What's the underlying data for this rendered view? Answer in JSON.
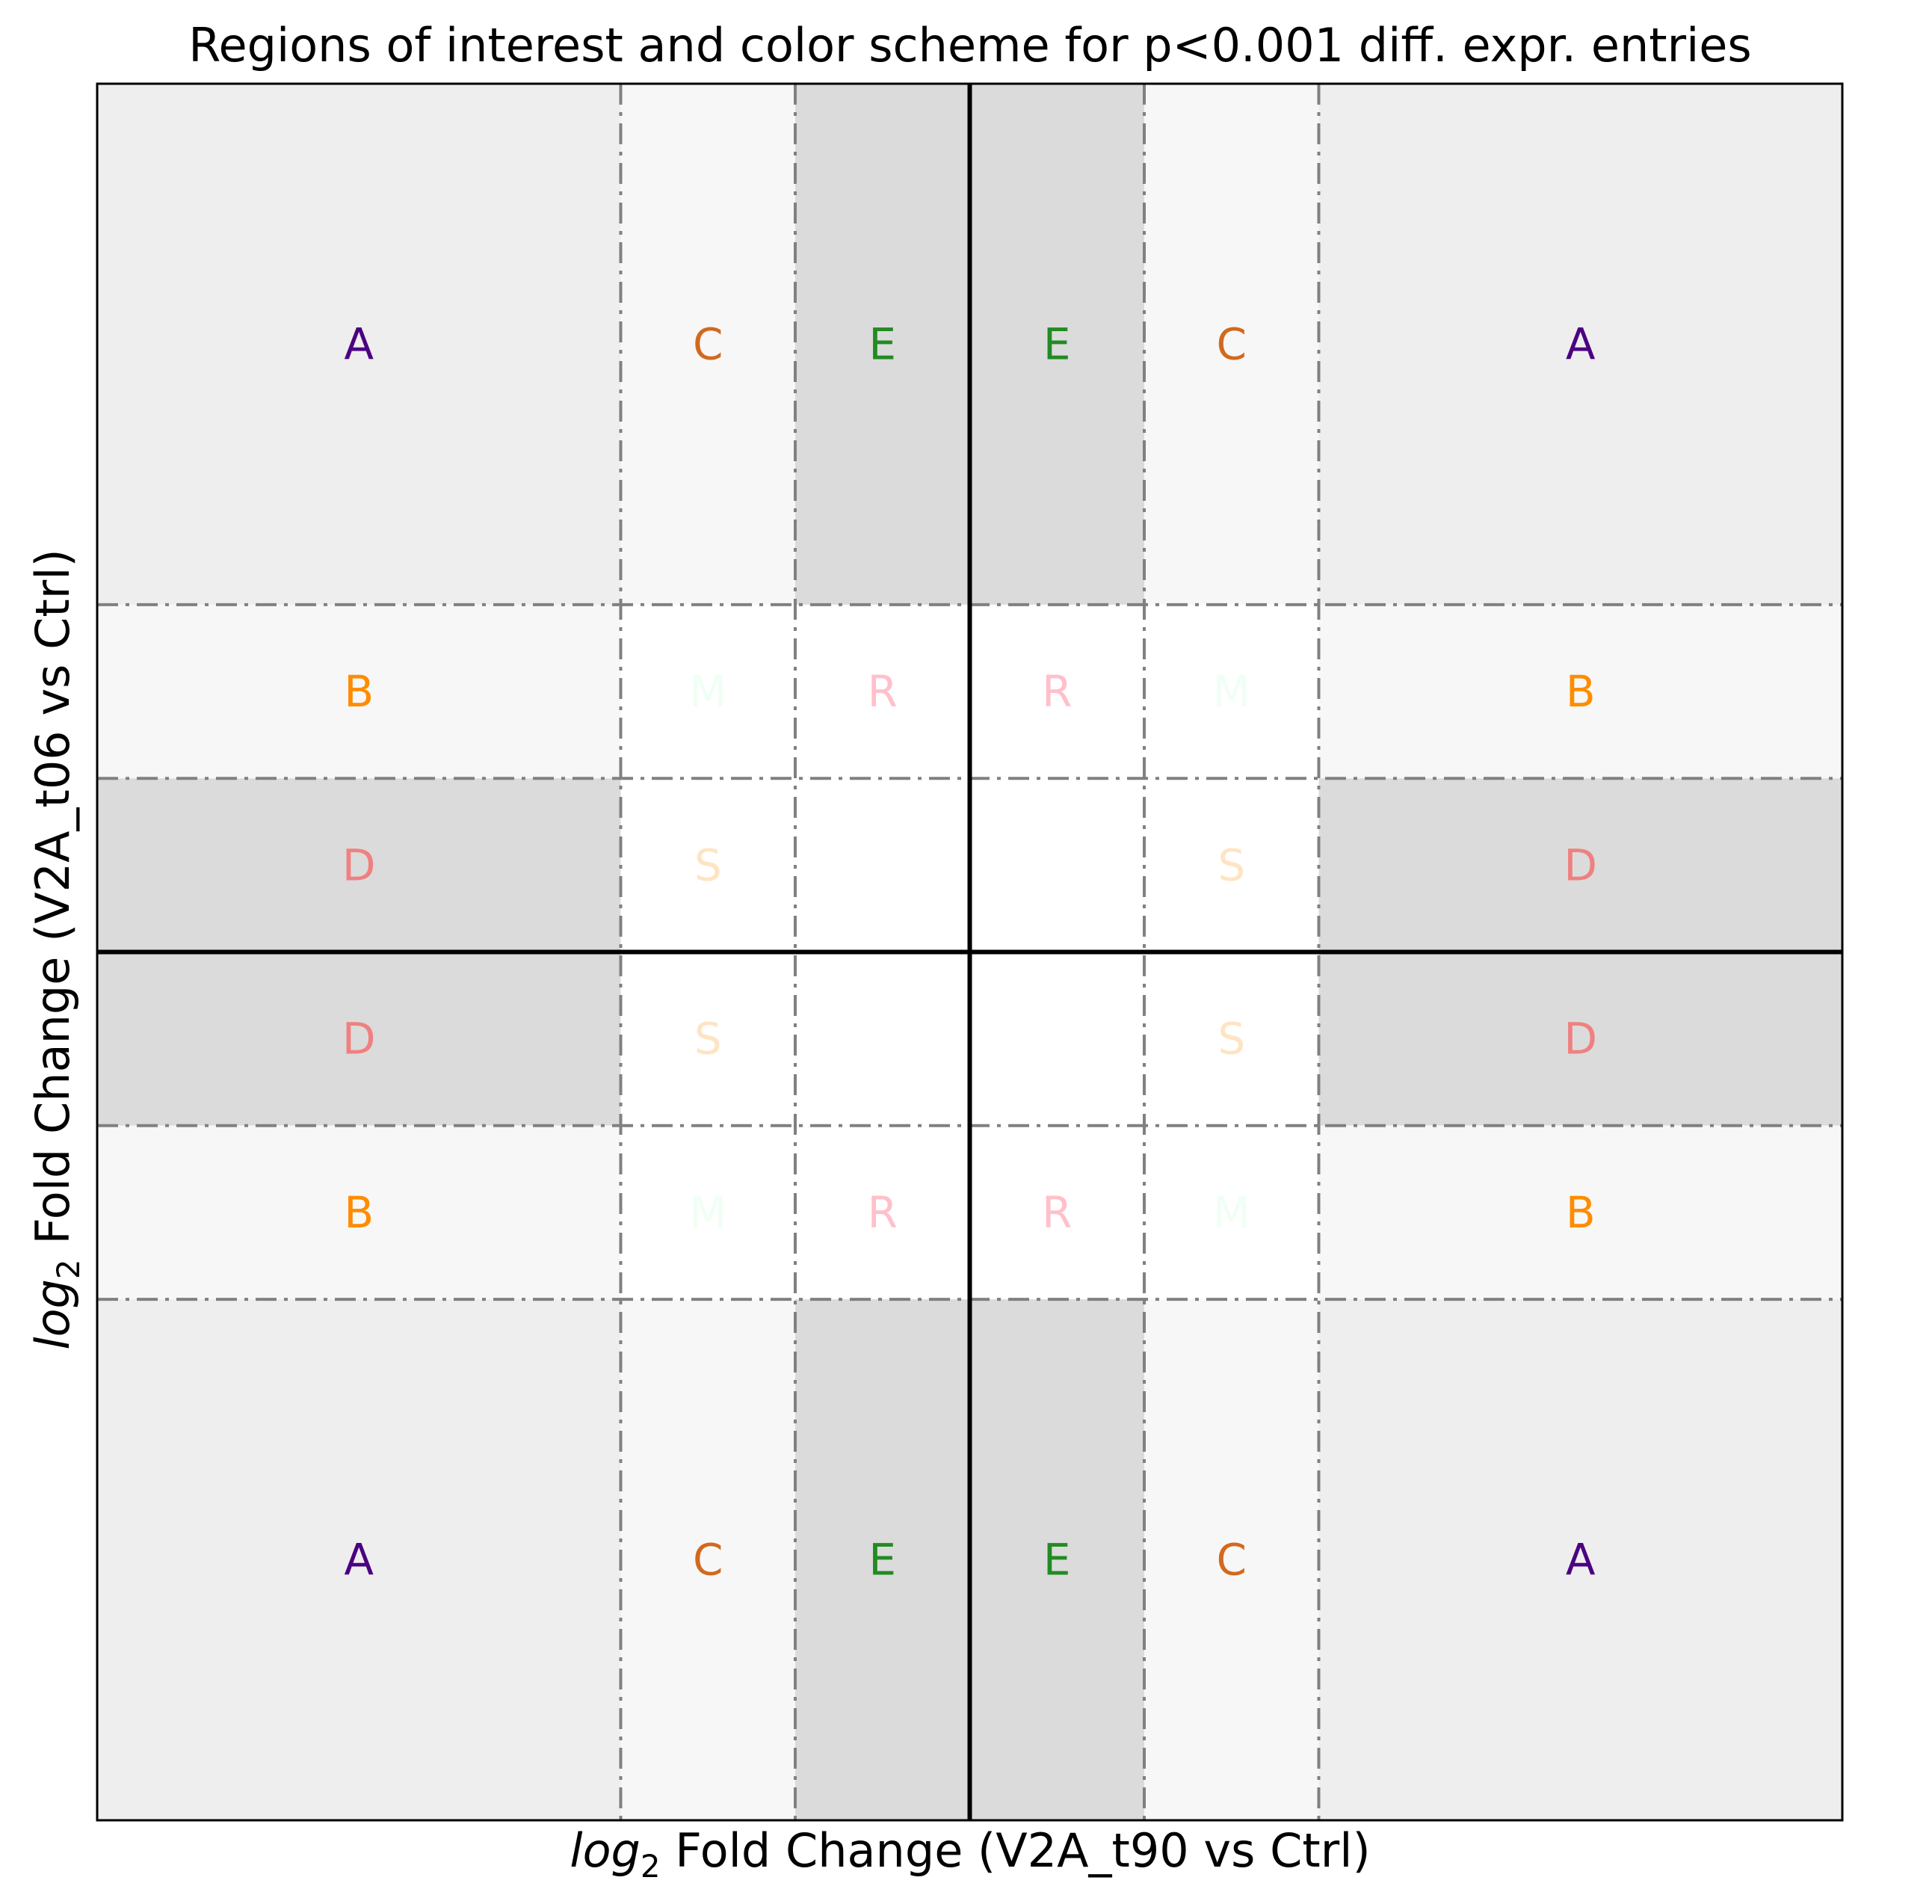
{
  "chart_data": {
    "type": "heatmap",
    "title": "Regions of interest and color scheme for p<0.001 diff. expr. entries",
    "xlabel": {
      "math": "log",
      "sub": "2",
      "text": " Fold Change (V2A_t90 vs Ctrl)"
    },
    "ylabel": {
      "math": "log",
      "sub": "2",
      "text": " Fold Change (V2A_t06 vs Ctrl)"
    },
    "xticks": [],
    "yticks": [],
    "x_bounds": [
      -5,
      -2,
      -1,
      0,
      1,
      2,
      5
    ],
    "y_bounds": [
      -5,
      -2,
      -1,
      0,
      1,
      2,
      5
    ],
    "xlim": [
      -5,
      5
    ],
    "ylim": [
      -5,
      5
    ],
    "region_fills": {
      "A": "#eeeeee",
      "B": "#f7f7f7",
      "C": "#f7f7f7",
      "D": "#dbdbdb",
      "E": "#dbdbdb",
      "M": "#ffffff",
      "R": "#ffffff",
      "S": "#ffffff",
      "none": "#ffffff"
    },
    "region_colors": {
      "A": "#4b0082",
      "B": "#ff8c00",
      "C": "#d2691e",
      "D": "#f08080",
      "E": "#228b22",
      "M": "#f0fff4",
      "R": "#ffc0cb",
      "S": "#ffe4c4"
    },
    "grid_rows_top_to_bottom": [
      [
        "A",
        "C",
        "E",
        "E",
        "C",
        "A"
      ],
      [
        "B",
        "M",
        "R",
        "R",
        "M",
        "B"
      ],
      [
        "D",
        "S",
        "",
        "",
        "S",
        "D"
      ],
      [
        "D",
        "S",
        "",
        "",
        "S",
        "D"
      ],
      [
        "B",
        "M",
        "R",
        "R",
        "M",
        "B"
      ],
      [
        "A",
        "C",
        "E",
        "E",
        "C",
        "A"
      ]
    ],
    "center_lines": {
      "x": 0,
      "y": 0,
      "color": "#000000"
    },
    "boundary_line_color": "#808080"
  }
}
